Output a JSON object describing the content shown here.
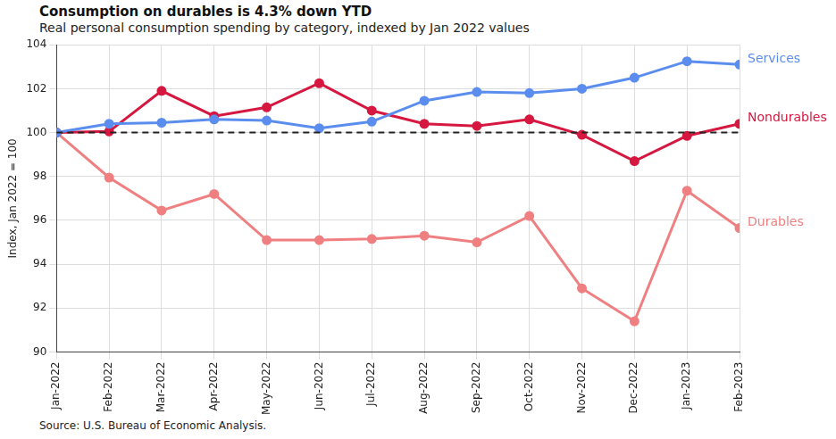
{
  "chart_data": {
    "type": "line",
    "title": "Consumption on durables is 4.3% down YTD",
    "subtitle": "Real personal consumption spending by category, indexed by Jan 2022 values",
    "y_label": "Index, Jan 2022 = 100",
    "source": "Source: U.S. Bureau of Economic Analysis.",
    "categories": [
      "Jan-2022",
      "Feb-2022",
      "Mar-2022",
      "Apr-2022",
      "May-2022",
      "Jun-2022",
      "Jul-2022",
      "Aug-2022",
      "Sep-2022",
      "Oct-2022",
      "Nov-2022",
      "Dec-2022",
      "Jan-2023",
      "Feb-2023"
    ],
    "series": [
      {
        "name": "Services",
        "color": "#5b8def",
        "marker": "circle",
        "values": [
          100,
          100.4,
          100.45,
          100.6,
          100.55,
          100.2,
          100.5,
          101.45,
          101.85,
          101.8,
          102.0,
          102.5,
          103.25,
          103.1
        ]
      },
      {
        "name": "Nondurables",
        "color": "#d6173f",
        "marker": "circle",
        "values": [
          100,
          100.05,
          101.9,
          100.75,
          101.15,
          102.25,
          101.0,
          100.4,
          100.3,
          100.6,
          99.9,
          98.7,
          99.85,
          100.4
        ]
      },
      {
        "name": "Durables",
        "color": "#ef7f80",
        "marker": "circle",
        "values": [
          100,
          97.95,
          96.45,
          97.2,
          95.1,
          95.1,
          95.15,
          95.3,
          95.0,
          96.2,
          92.9,
          91.4,
          97.35,
          95.65
        ]
      }
    ],
    "reference_line": 100,
    "ylim": [
      90,
      104
    ],
    "yticks": [
      90,
      92,
      94,
      96,
      98,
      100,
      102,
      104
    ],
    "grid": true
  }
}
